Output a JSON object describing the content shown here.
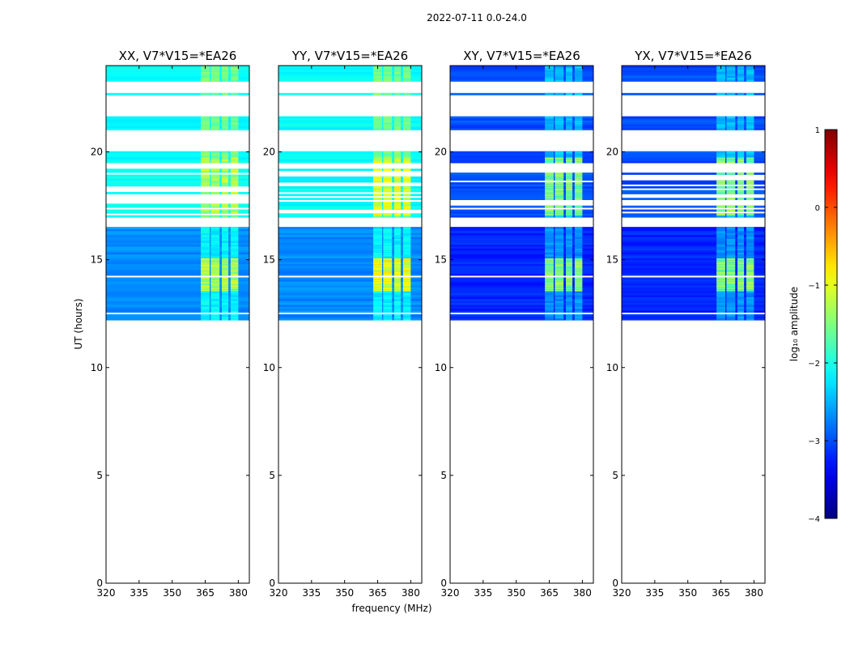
{
  "figure": {
    "suptitle": "2022-07-11 0.0-24.0",
    "xlabel": "frequency (MHz)",
    "ylabel": "UT (hours)",
    "colorbar_label": "log₁₀ amplitude"
  },
  "chart_data": {
    "type": "heatmap",
    "description_units": "UT hours vs frequency MHz, color = log10 amplitude",
    "xlim": [
      320,
      385
    ],
    "ylim": [
      0,
      24
    ],
    "xticks": [
      320,
      335,
      350,
      365,
      380
    ],
    "yticks": [
      0,
      5,
      10,
      15,
      20
    ],
    "data_extent_ut": [
      12.2,
      24
    ],
    "colorbar": {
      "colormap": "jet",
      "range": [
        -4,
        1
      ],
      "ticks": [
        1,
        0,
        -1,
        -2,
        -3,
        -4
      ],
      "tick_labels": [
        "1",
        "0",
        "−1",
        "−2",
        "−3",
        "−4"
      ]
    },
    "gap_bands_ut": [
      [
        22.65,
        22.75
      ],
      [
        22.75,
        23.25
      ],
      [
        16.5,
        16.7
      ],
      [
        19.15,
        19.4
      ],
      [
        14.1,
        14.2
      ],
      [
        12.95,
        13.0
      ],
      [
        12.45,
        12.5
      ]
    ],
    "rfi_band_mhz": [
      363,
      381
    ],
    "panels": [
      {
        "title": "XX, V7*V15=*EA26",
        "base_log_amp": -2.7,
        "upper_log_amp": -2.1,
        "rfi_log_amp": -1.3
      },
      {
        "title": "YY, V7*V15=*EA26",
        "base_log_amp": -2.7,
        "upper_log_amp": -2.1,
        "rfi_log_amp": -1.0
      },
      {
        "title": "XY, V7*V15=*EA26",
        "base_log_amp": -3.2,
        "upper_log_amp": -3.0,
        "rfi_log_amp": -1.5
      },
      {
        "title": "YX, V7*V15=*EA26",
        "base_log_amp": -3.2,
        "upper_log_amp": -3.0,
        "rfi_log_amp": -1.5
      }
    ]
  }
}
